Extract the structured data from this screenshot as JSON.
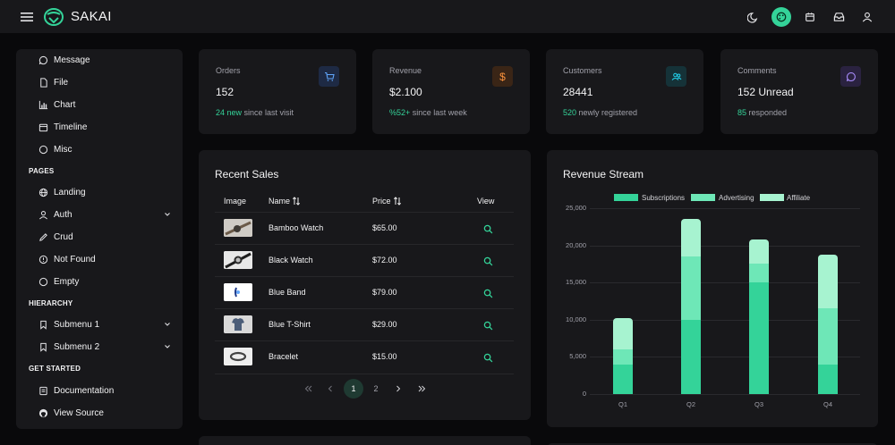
{
  "topbar": {
    "brand": "SAKAI",
    "icons": [
      "menu-icon",
      "logo-icon",
      "moon-icon",
      "palette-icon",
      "calendar-icon",
      "inbox-icon",
      "user-icon"
    ]
  },
  "sidebar": {
    "items_top": [
      {
        "label": "Message",
        "icon": "message-icon"
      },
      {
        "label": "File",
        "icon": "file-icon"
      },
      {
        "label": "Chart",
        "icon": "chart-icon"
      },
      {
        "label": "Timeline",
        "icon": "calendar-icon"
      },
      {
        "label": "Misc",
        "icon": "circle-icon"
      }
    ],
    "pages_title": "PAGES",
    "pages": [
      {
        "label": "Landing",
        "icon": "globe-icon"
      },
      {
        "label": "Auth",
        "icon": "user-icon",
        "expandable": true
      },
      {
        "label": "Crud",
        "icon": "pencil-icon"
      },
      {
        "label": "Not Found",
        "icon": "exclamation-icon"
      },
      {
        "label": "Empty",
        "icon": "circle-icon"
      }
    ],
    "hierarchy_title": "HIERARCHY",
    "hierarchy": [
      {
        "label": "Submenu 1",
        "icon": "bookmark-icon",
        "expandable": true
      },
      {
        "label": "Submenu 2",
        "icon": "bookmark-icon",
        "expandable": true
      }
    ],
    "started_title": "GET STARTED",
    "started": [
      {
        "label": "Documentation",
        "icon": "book-icon"
      },
      {
        "label": "View Source",
        "icon": "github-icon"
      }
    ]
  },
  "stats": [
    {
      "title": "Orders",
      "value": "152",
      "highlight": "24 new",
      "sub": " since last visit",
      "icon": "cart-icon",
      "icon_color": "#60a5fa",
      "icon_bg": "#1e2a44"
    },
    {
      "title": "Revenue",
      "value": "$2.100",
      "highlight": "%52+",
      "sub": " since last week",
      "icon": "dollar-icon",
      "icon_color": "#fb923c",
      "icon_bg": "#3a2516"
    },
    {
      "title": "Customers",
      "value": "28441",
      "highlight": "520",
      "sub": " newly registered",
      "icon": "users-icon",
      "icon_color": "#22d3ee",
      "icon_bg": "#153238"
    },
    {
      "title": "Comments",
      "value": "152 Unread",
      "highlight": "85",
      "sub": " responded",
      "icon": "comment-icon",
      "icon_color": "#a78bfa",
      "icon_bg": "#2a2240"
    }
  ],
  "sales": {
    "title": "Recent Sales",
    "headers": {
      "image": "Image",
      "name": "Name",
      "price": "Price",
      "view": "View"
    },
    "rows": [
      {
        "name": "Bamboo Watch",
        "price": "$65.00",
        "image": "bamboo-watch"
      },
      {
        "name": "Black Watch",
        "price": "$72.00",
        "image": "black-watch"
      },
      {
        "name": "Blue Band",
        "price": "$79.00",
        "image": "blue-band"
      },
      {
        "name": "Blue T-Shirt",
        "price": "$29.00",
        "image": "blue-t-shirt"
      },
      {
        "name": "Bracelet",
        "price": "$15.00",
        "image": "bracelet"
      }
    ],
    "pager": {
      "pages": [
        "1",
        "2"
      ],
      "current": "1"
    }
  },
  "chart_data": {
    "type": "bar",
    "title": "Revenue Stream",
    "categories": [
      "Q1",
      "Q2",
      "Q3",
      "Q4"
    ],
    "stacked": true,
    "series": [
      {
        "name": "Subscriptions",
        "values": [
          4000,
          10000,
          15000,
          4000
        ],
        "color": "#34d399"
      },
      {
        "name": "Advertising",
        "values": [
          2000,
          8500,
          2500,
          7500
        ],
        "color": "#6ee7b7"
      },
      {
        "name": "Affiliate",
        "values": [
          4200,
          5000,
          3300,
          7300
        ],
        "color": "#a7f3d0"
      }
    ],
    "ylim": [
      0,
      25000
    ],
    "yticks": [
      "25,000",
      "20,000",
      "15,000",
      "10,000",
      "5,000",
      "0"
    ],
    "legend": "top",
    "grid": true
  }
}
